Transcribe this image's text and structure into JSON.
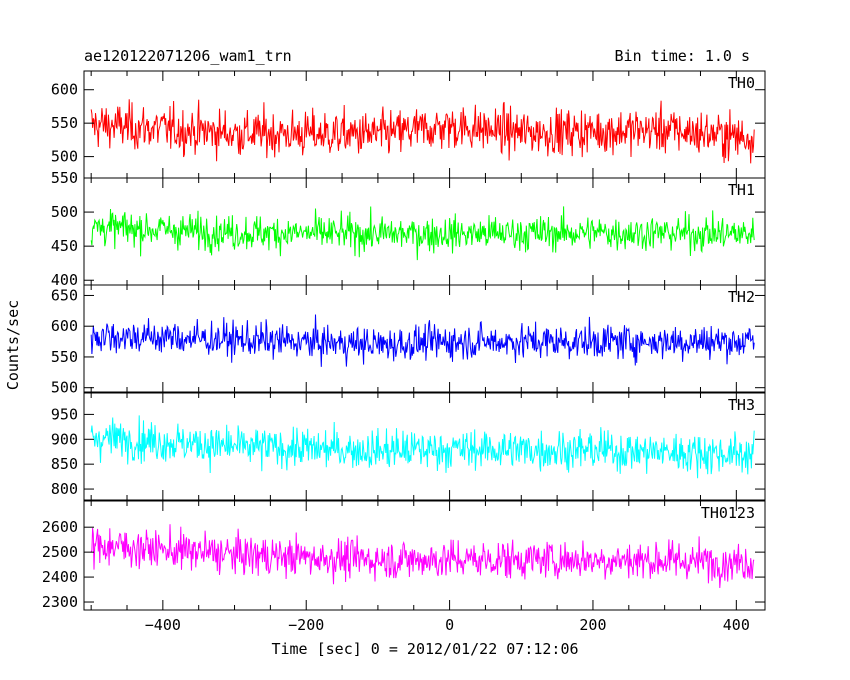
{
  "header": {
    "left_title": "ae120122071206_wam1_trn",
    "right_title": "Bin time: 1.0 s"
  },
  "axes": {
    "xlabel": "Time [sec] 0 = 2012/01/22 07:12:06",
    "ylabel": "Counts/sec"
  },
  "chart_data": {
    "type": "line",
    "x": {
      "min": -510,
      "max": 440,
      "step": 1.0,
      "series_start": -500,
      "series_end": 425,
      "ticks": [
        -400,
        -200,
        0,
        200,
        400
      ],
      "tick_labels": [
        "−400",
        "−200",
        "0",
        "200",
        "400"
      ]
    },
    "panels": [
      {
        "name": "TH0",
        "color": "#ff0000",
        "ylim": [
          468,
          628
        ],
        "yticks": [
          500,
          550,
          600
        ],
        "mean_segments": [
          [
            -500,
            548
          ],
          [
            -300,
            535
          ],
          [
            -100,
            533
          ],
          [
            0,
            545
          ],
          [
            100,
            536
          ],
          [
            300,
            540
          ],
          [
            425,
            528
          ]
        ],
        "noise": 24
      },
      {
        "name": "TH1",
        "color": "#00ff00",
        "ylim": [
          393,
          550
        ],
        "yticks": [
          400,
          450,
          500,
          550
        ],
        "mean_segments": [
          [
            -500,
            478
          ],
          [
            -300,
            470
          ],
          [
            -100,
            468
          ],
          [
            0,
            468
          ],
          [
            200,
            470
          ],
          [
            425,
            468
          ]
        ],
        "noise": 18
      },
      {
        "name": "TH2",
        "color": "#0000ff",
        "ylim": [
          493,
          667
        ],
        "yticks": [
          500,
          550,
          600,
          650
        ],
        "mean_segments": [
          [
            -500,
            585
          ],
          [
            -300,
            578
          ],
          [
            -100,
            570
          ],
          [
            0,
            575
          ],
          [
            200,
            575
          ],
          [
            425,
            575
          ]
        ],
        "noise": 20
      },
      {
        "name": "TH3",
        "color": "#00ffff",
        "ylim": [
          778,
          993
        ],
        "yticks": [
          800,
          850,
          900,
          950
        ],
        "mean_segments": [
          [
            -500,
            905
          ],
          [
            -300,
            885
          ],
          [
            -100,
            878
          ],
          [
            0,
            880
          ],
          [
            200,
            878
          ],
          [
            425,
            870
          ]
        ],
        "noise": 28
      },
      {
        "name": "TH0123",
        "color": "#ff00ff",
        "ylim": [
          2268,
          2705
        ],
        "yticks": [
          2300,
          2400,
          2500,
          2600
        ],
        "mean_segments": [
          [
            -500,
            2530
          ],
          [
            -300,
            2490
          ],
          [
            -100,
            2470
          ],
          [
            0,
            2470
          ],
          [
            200,
            2470
          ],
          [
            425,
            2460
          ]
        ],
        "noise": 55
      }
    ]
  }
}
